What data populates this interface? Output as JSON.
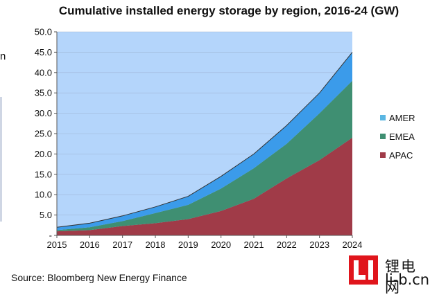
{
  "stray_char": "n",
  "source": "Source: Bloomberg New Energy Finance",
  "watermark": {
    "top": "锂电网",
    "bottom": "li-b.cn"
  },
  "colors": {
    "plot_bg": "#b4d5fb",
    "amer": "#3b9bea",
    "emea": "#3f8f72",
    "apac": "#a03b48",
    "legend_amer": "#5ab6e2",
    "logo": "#e0151c"
  },
  "chart_data": {
    "type": "area",
    "stacked": true,
    "title": "Cumulative installed energy storage by region, 2016-24 (GW)",
    "x": [
      "2015",
      "2016",
      "2017",
      "2018",
      "2019",
      "2020",
      "2021",
      "2022",
      "2023",
      "2024"
    ],
    "ylim": [
      0,
      50
    ],
    "yticks": [
      "-",
      "5.0",
      "10.0",
      "15.0",
      "20.0",
      "25.0",
      "30.0",
      "35.0",
      "40.0",
      "45.0",
      "50.0"
    ],
    "grid": true,
    "legend_position": "right",
    "series": [
      {
        "name": "APAC",
        "values": [
          1.0,
          1.3,
          2.3,
          3.0,
          4.0,
          6.0,
          9.0,
          14.0,
          18.5,
          24.0
        ]
      },
      {
        "name": "EMEA",
        "values": [
          0.3,
          0.7,
          1.2,
          2.5,
          3.5,
          5.5,
          7.5,
          8.5,
          11.5,
          14.0
        ]
      },
      {
        "name": "AMER",
        "values": [
          0.7,
          1.0,
          1.3,
          1.5,
          2.1,
          3.0,
          3.5,
          4.5,
          5.0,
          7.0
        ]
      }
    ]
  }
}
